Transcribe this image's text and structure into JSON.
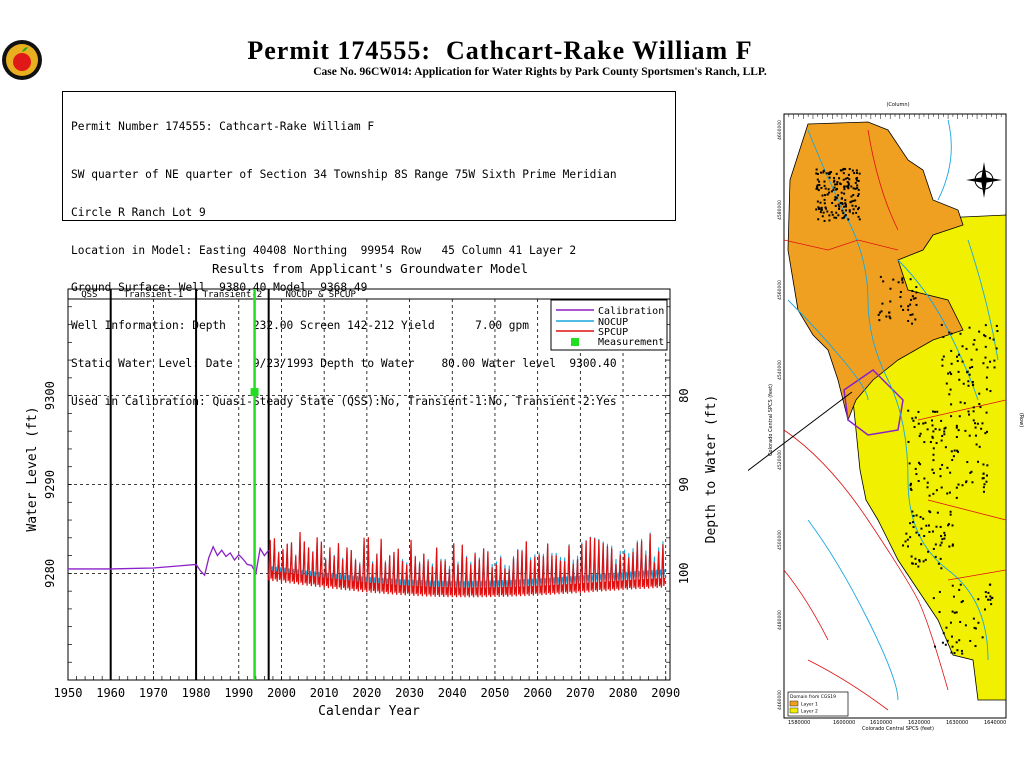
{
  "header": {
    "title": "Permit 174555:  Cathcart-Rake William F",
    "subtitle": "Case No. 96CW014: Application for Water Rights by Park County Sportsmen's Ranch, LLP."
  },
  "info_box": {
    "lines": [
      "Permit Number 174555: Cathcart-Rake William F",
      "SW quarter of NE quarter of Section 34 Township 8S Range 75W Sixth Prime Meridian",
      "Circle R Ranch Lot 9",
      "Location in Model: Easting 40408 Northing  99954 Row   45 Column 41 Layer 2",
      "Ground Surface: Well  9380.40 Model  9368.49",
      "Well Information: Depth    232.00 Screen 142-212 Yield      7.00 gpm",
      "Static Water Level: Date   9/23/1993 Depth to Water    80.00 Water level  9300.40",
      "Used in Calibration: Quasi-Steady State (QSS):No, Transient-1:No, Transient-2:Yes"
    ]
  },
  "colors": {
    "calibration": "#8b1fc9",
    "nocup": "#1aa7e0",
    "spcup": "#e01010",
    "measurement": "#22dd22",
    "map_layer1": "#f0a020",
    "map_layer2": "#f0f000"
  },
  "chart_data": {
    "type": "line",
    "title": "Results from Applicant's Groundwater Model",
    "xlabel": "Calendar Year",
    "ylabel": "Water Level (ft)",
    "y2label": "Depth to Water (ft)",
    "xlim": [
      1950,
      2091
    ],
    "ylim": [
      9268,
      9312
    ],
    "x_ticks": [
      1950,
      1960,
      1970,
      1980,
      1990,
      2000,
      2010,
      2020,
      2030,
      2040,
      2050,
      2060,
      2070,
      2080,
      2090
    ],
    "y_ticks": [
      9280,
      9290,
      9300
    ],
    "y2_ticks": [
      80,
      90,
      100
    ],
    "grid": "dashed",
    "legend_position": "top-right",
    "periods": [
      {
        "label": "QSS",
        "start": 1950,
        "end": 1960
      },
      {
        "label": "Transient-1",
        "start": 1960,
        "end": 1980
      },
      {
        "label": "Transient-2",
        "start": 1980,
        "end": 1997
      },
      {
        "label": "NOCUP  &  SPCUP",
        "start": 1997,
        "end": 2091
      }
    ],
    "series": [
      {
        "name": "Calibration",
        "x": [
          1950,
          1960,
          1970,
          1975,
          1980,
          1981,
          1982,
          1983,
          1984,
          1985,
          1986,
          1987,
          1988,
          1989,
          1990,
          1991,
          1992,
          1993,
          1994,
          1995,
          1996,
          1997
        ],
        "y": [
          9280.5,
          9280.5,
          9280.6,
          9280.8,
          9281.0,
          9280.3,
          9279.8,
          9281.8,
          9283.0,
          9282.0,
          9282.6,
          9281.9,
          9282.3,
          9281.5,
          9282.1,
          9281.6,
          9281.0,
          9280.9,
          9280.0,
          9282.8,
          9282.0,
          9282.6
        ]
      },
      {
        "name": "NOCUP",
        "x": [
          1997,
          2090
        ],
        "y": [
          9280.5,
          9279.5
        ]
      },
      {
        "name": "SPCUP",
        "x": [
          1997,
          2090
        ],
        "y": [
          9280.0,
          9278.5
        ]
      },
      {
        "name": "Measurement",
        "x": [
          1993.7
        ],
        "y": [
          9300.4
        ]
      }
    ]
  },
  "map": {
    "top_axis_label": "(Column)",
    "left_axis_label": "Colorado Central SPCS (feet)",
    "right_axis_label": "(Row)",
    "bottom_axis_label": "Colorado Central SPCS (feet)",
    "bottom_ticks": [
      "1580000",
      "1600000",
      "1610000",
      "1620000",
      "1630000",
      "1640000"
    ],
    "left_ticks": [
      "4600000",
      "4580000",
      "4560000",
      "4540000",
      "4520000",
      "4500000",
      "4480000",
      "4460000"
    ],
    "legend_title": "Domain from CGS19",
    "legend_items": [
      "Layer 1",
      "Layer 2"
    ]
  }
}
